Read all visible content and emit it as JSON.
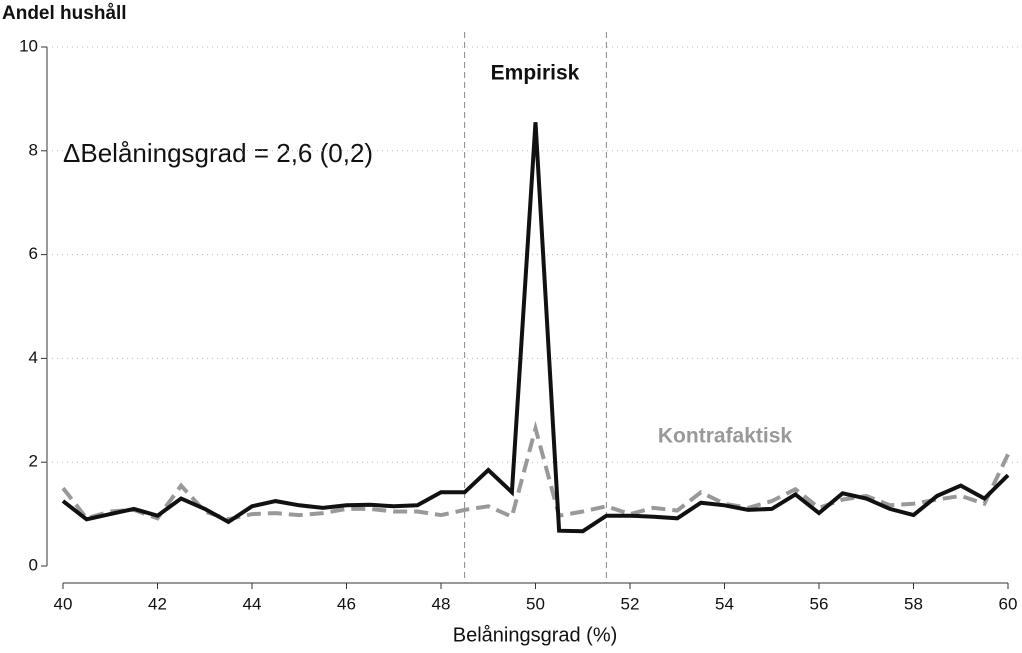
{
  "chart_data": {
    "type": "line",
    "y_label": "Andel hushåll",
    "x_label": "Belåningsgrad (%)",
    "annotation": "ΔBelåningsgrad = 2,6 (0,2)",
    "x": [
      40,
      40.5,
      41,
      41.5,
      42,
      42.5,
      43,
      43.5,
      44,
      44.5,
      45,
      45.5,
      46,
      46.5,
      47,
      47.5,
      48,
      48.5,
      49,
      49.5,
      50,
      50.5,
      51,
      51.5,
      52,
      52.5,
      53,
      53.5,
      54,
      54.5,
      55,
      55.5,
      56,
      56.5,
      57,
      57.5,
      58,
      58.5,
      59,
      59.5,
      60
    ],
    "series": [
      {
        "name": "Empirisk",
        "color": "#111111",
        "dashed": false,
        "values": [
          1.25,
          0.9,
          1.0,
          1.1,
          0.97,
          1.3,
          1.1,
          0.85,
          1.15,
          1.25,
          1.17,
          1.12,
          1.17,
          1.18,
          1.15,
          1.17,
          1.42,
          1.42,
          1.85,
          1.42,
          8.55,
          0.68,
          0.67,
          0.97,
          0.97,
          0.95,
          0.92,
          1.22,
          1.17,
          1.08,
          1.1,
          1.38,
          1.02,
          1.4,
          1.3,
          1.1,
          0.98,
          1.35,
          1.55,
          1.3,
          1.75
        ]
      },
      {
        "name": "Kontrafaktisk",
        "color": "#999999",
        "dashed": true,
        "values": [
          1.5,
          0.92,
          1.05,
          1.08,
          0.92,
          1.55,
          1.05,
          0.9,
          1.0,
          1.02,
          0.98,
          1.02,
          1.1,
          1.1,
          1.05,
          1.05,
          0.98,
          1.08,
          1.15,
          0.95,
          2.65,
          0.97,
          1.05,
          1.15,
          1.0,
          1.12,
          1.07,
          1.42,
          1.2,
          1.12,
          1.25,
          1.48,
          1.12,
          1.28,
          1.35,
          1.17,
          1.2,
          1.28,
          1.35,
          1.2,
          2.15
        ]
      }
    ],
    "vlines": [
      48.5,
      51.5
    ],
    "xlim": [
      40,
      60
    ],
    "xticks": [
      40,
      42,
      44,
      46,
      48,
      50,
      52,
      54,
      56,
      58,
      60
    ],
    "ylim": [
      0,
      10
    ],
    "yticks": [
      0,
      2,
      4,
      6,
      8,
      10
    ],
    "grid": true
  }
}
